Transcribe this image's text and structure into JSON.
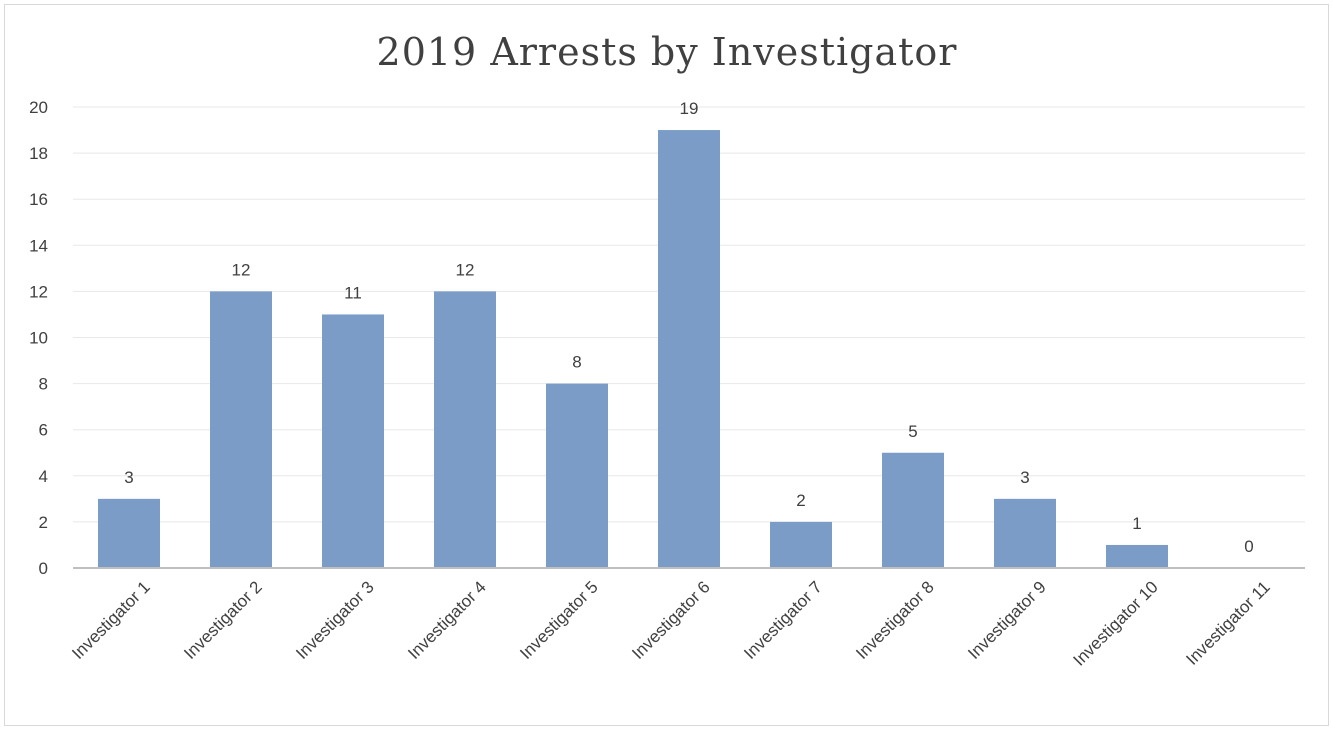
{
  "chart_data": {
    "type": "bar",
    "title": "2019 Arrests by Investigator",
    "xlabel": "",
    "ylabel": "",
    "categories": [
      "Investigator 1",
      "Investigator 2",
      "Investigator 3",
      "Investigator 4",
      "Investigator 5",
      "Investigator 6",
      "Investigator 7",
      "Investigator 8",
      "Investigator 9",
      "Investigator 10",
      "Investigator 11"
    ],
    "values": [
      3,
      12,
      11,
      12,
      8,
      19,
      2,
      5,
      3,
      1,
      0
    ],
    "ylim": [
      0,
      20
    ],
    "yticks": [
      0,
      2,
      4,
      6,
      8,
      10,
      12,
      14,
      16,
      18,
      20
    ],
    "grid": true,
    "legend": "none",
    "data_labels": true,
    "bar_color": "#7a9cc6"
  }
}
